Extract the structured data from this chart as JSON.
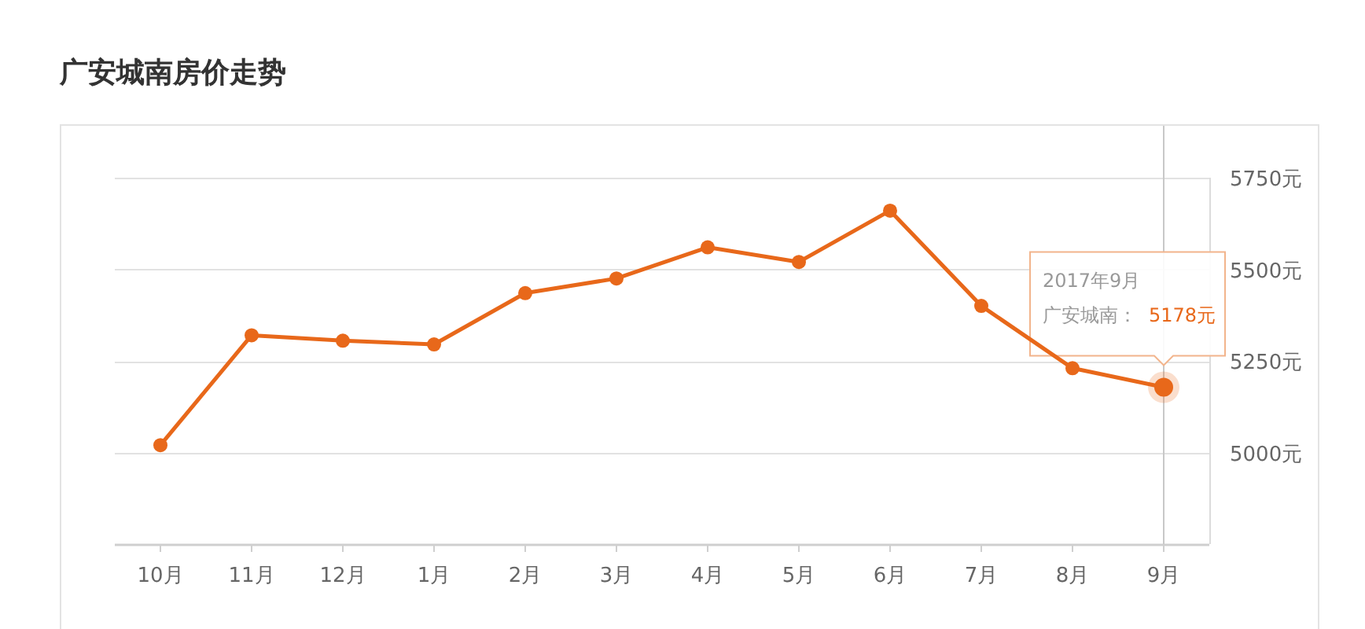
{
  "chart_data": {
    "type": "line",
    "title": "广安城南房价走势",
    "categories": [
      "10月",
      "11月",
      "12月",
      "1月",
      "2月",
      "3月",
      "4月",
      "5月",
      "6月",
      "7月",
      "8月",
      "9月"
    ],
    "series": [
      {
        "name": "广安城南：",
        "color": "#e8681a",
        "values": [
          5020,
          5320,
          5305,
          5295,
          5435,
          5475,
          5560,
          5520,
          5660,
          5400,
          5230,
          5178
        ],
        "value_labels": [
          null,
          null,
          null,
          null,
          null,
          null,
          null,
          null,
          null,
          null,
          null,
          "5178元"
        ]
      }
    ],
    "annotations": [
      "2017年9月"
    ],
    "ref_lines": [
      {
        "axis": "x",
        "value": "9月",
        "color": "#c8c8c8"
      }
    ],
    "ylim": [
      4750,
      5750
    ],
    "yticks": [
      {
        "value": 5000,
        "label": "5000元"
      },
      {
        "value": 5250,
        "label": "5250元"
      },
      {
        "value": 5500,
        "label": "5500元"
      },
      {
        "value": 5750,
        "label": "5750元"
      }
    ],
    "grid": "y",
    "marker": "circle"
  }
}
